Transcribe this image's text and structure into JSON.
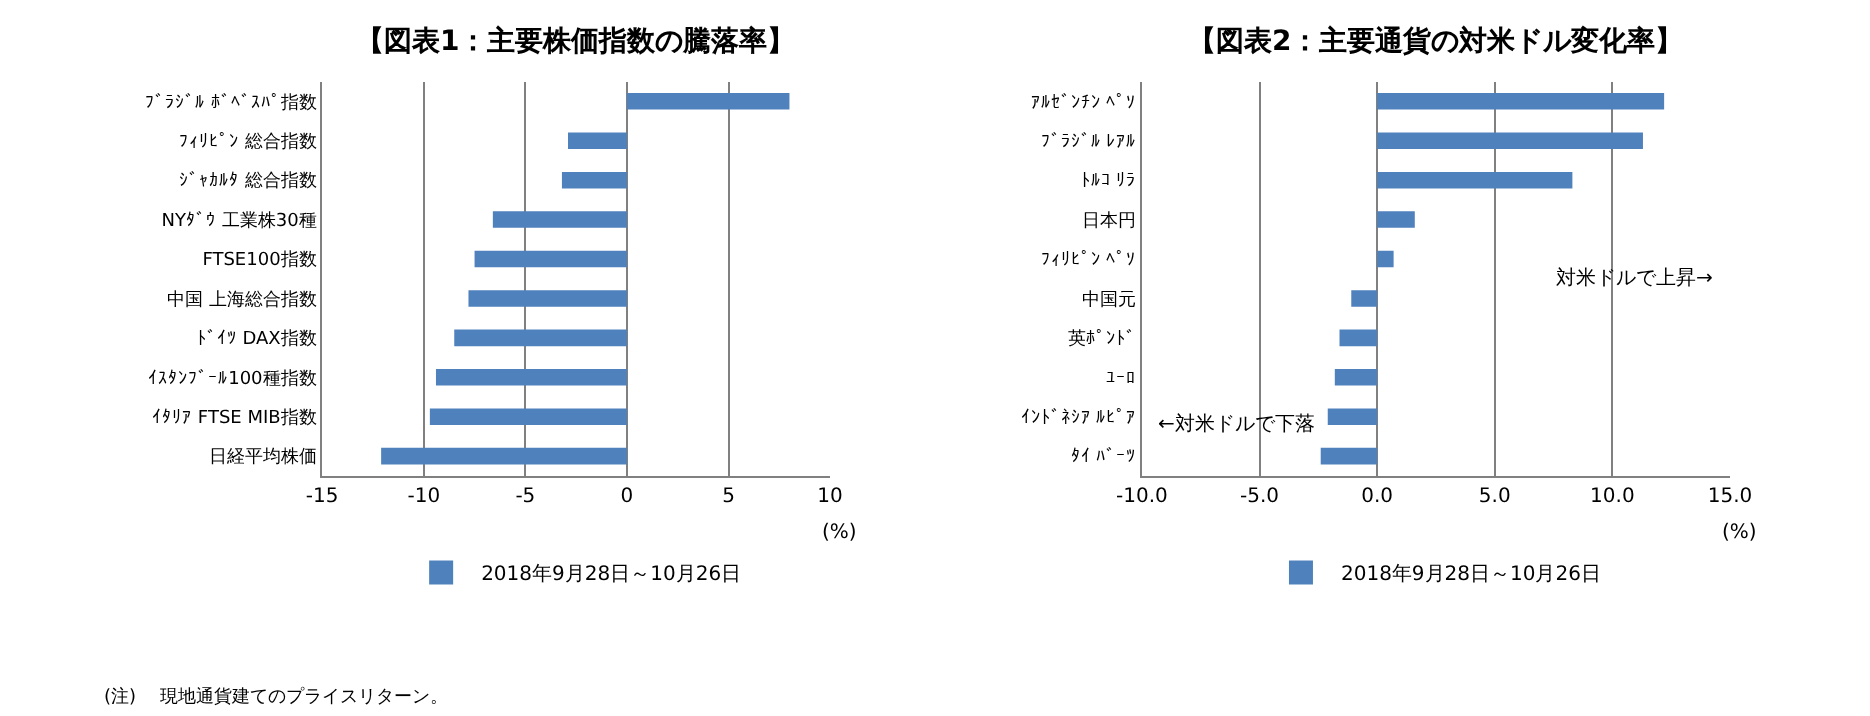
{
  "chart_data": [
    {
      "type": "bar",
      "orientation": "horizontal",
      "title": "【図表1：主要株価指数の騰落率】",
      "xlabel": "(%)",
      "categories": [
        "ﾌﾞﾗｼﾞﾙ ﾎﾞﾍﾞｽﾊﾟ指数",
        "ﾌｨﾘﾋﾟﾝ 総合指数",
        "ｼﾞｬｶﾙﾀ 総合指数",
        "NYﾀﾞｳ 工業株30種",
        "FTSE100指数",
        "中国 上海総合指数",
        "ﾄﾞｲﾂ DAX指数",
        "ｲｽﾀﾝﾌﾞｰﾙ100種指数",
        "ｲﾀﾘｱ FTSE MIB指数",
        "日経平均株価"
      ],
      "series": [
        {
          "name": "2018年9月28日～10月26日",
          "color": "#4f81bd",
          "values": [
            8.0,
            -2.9,
            -3.2,
            -6.6,
            -7.5,
            -7.8,
            -8.5,
            -9.4,
            -9.7,
            -12.1
          ]
        }
      ],
      "xlim": [
        -15,
        10
      ],
      "xticks": [
        -15,
        -10,
        -5,
        0,
        5,
        10
      ],
      "grid": "x",
      "legend": "bottom",
      "annotations": [
        "(注)　 現地通貨建てのプライスリターン。"
      ]
    },
    {
      "type": "bar",
      "orientation": "horizontal",
      "title": "【図表2：主要通貨の対米ドル変化率】",
      "xlabel": "(%)",
      "categories": [
        "ｱﾙｾﾞﾝﾁﾝ ﾍﾟｿ",
        "ﾌﾞﾗｼﾞﾙ ﾚｱﾙ",
        "ﾄﾙｺ ﾘﾗ",
        "日本円",
        "ﾌｨﾘﾋﾟﾝ ﾍﾟｿ",
        "中国元",
        "英ﾎﾟﾝﾄﾞ",
        "ﾕｰﾛ",
        "ｲﾝﾄﾞﾈｼｱ ﾙﾋﾟｱ",
        "ﾀｲ ﾊﾞｰﾂ"
      ],
      "series": [
        {
          "name": "2018年9月28日～10月26日",
          "color": "#4f81bd",
          "values": [
            12.2,
            11.3,
            8.3,
            1.6,
            0.7,
            -1.1,
            -1.6,
            -1.8,
            -2.1,
            -2.4
          ]
        }
      ],
      "xlim": [
        -10,
        15
      ],
      "xticks": [
        {
          "value": -10,
          "label": "-10.0"
        },
        {
          "value": -5,
          "label": "-5.0"
        },
        {
          "value": 0,
          "label": "0.0"
        },
        {
          "value": 5,
          "label": "5.0"
        },
        {
          "value": 10,
          "label": "10.0"
        },
        {
          "value": 15,
          "label": "15.0"
        }
      ],
      "grid": "x",
      "legend": "bottom",
      "annotations": [
        "←対米ドルで下落",
        "対米ドルで上昇→"
      ]
    }
  ]
}
